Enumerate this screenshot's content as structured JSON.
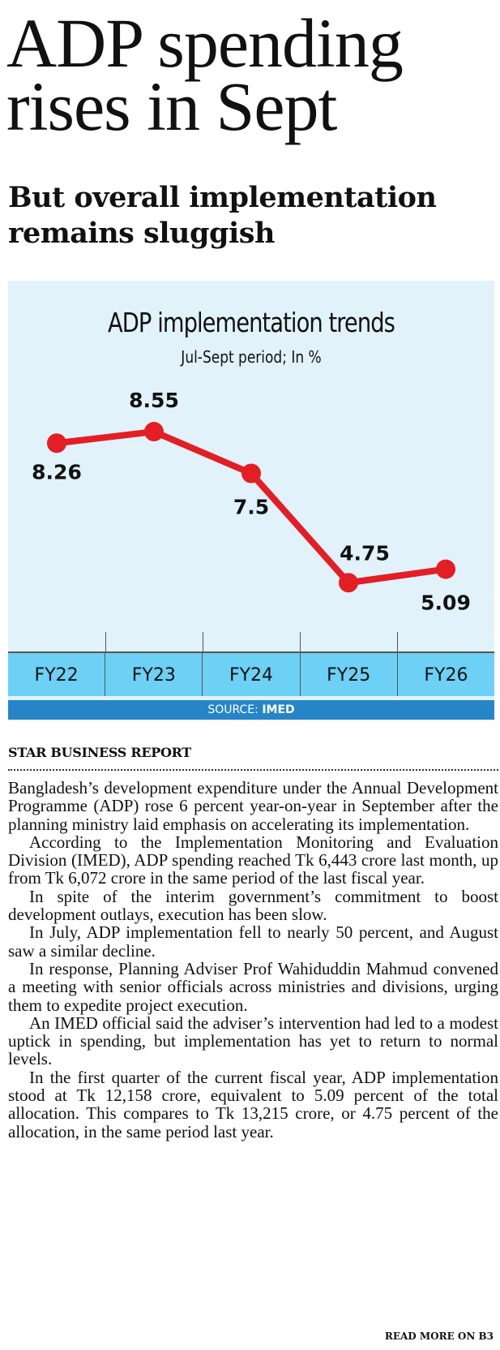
{
  "headline": "ADP spending rises in Sept",
  "subheadline": "But overall implementation remains sluggish",
  "chart_data": {
    "type": "line",
    "title": "ADP implementation trends",
    "subtitle": "Jul-Sept period; In %",
    "categories": [
      "FY22",
      "FY23",
      "FY24",
      "FY25",
      "FY26"
    ],
    "values": [
      8.26,
      8.55,
      7.5,
      4.75,
      5.09
    ],
    "data_labels": [
      "8.26",
      "8.55",
      "7.5",
      "4.75",
      "5.09"
    ],
    "series_color": "#e31e24",
    "xlabel": "",
    "ylabel": "",
    "grid": false,
    "source_prefix": "SOURCE:",
    "source": "IMED"
  },
  "byline": "STAR BUSINESS REPORT",
  "paragraphs": [
    "Bangladesh’s development expenditure under the Annual Development Programme (ADP) rose 6 percent year-on-year in September after the planning ministry laid emphasis on accelerating its implementation.",
    "According to the Implementation Monitoring and Evaluation Division (IMED), ADP spending reached Tk 6,443 crore last month, up from Tk 6,072 crore in the same period of the last fiscal year.",
    "In spite of the interim government’s commitment to boost development outlays, execution has been slow.",
    "In July, ADP implementation fell to nearly 50 percent, and August saw a similar decline.",
    "In response, Planning Adviser Prof Wahiduddin Mahmud convened a meeting with senior officials across ministries and divisions, urging them to expedite project execution.",
    "An IMED official said the adviser’s intervention had led to a modest uptick in spending, but implementation has yet to return to normal levels.",
    "In the first quarter of the current fiscal year, ADP implementation stood at Tk 12,158 crore, equivalent to 5.09 percent of the total allocation. This compares to Tk 13,215 crore, or 4.75 percent of the allocation, in the same period last year."
  ],
  "read_more": "READ MORE ON B3"
}
